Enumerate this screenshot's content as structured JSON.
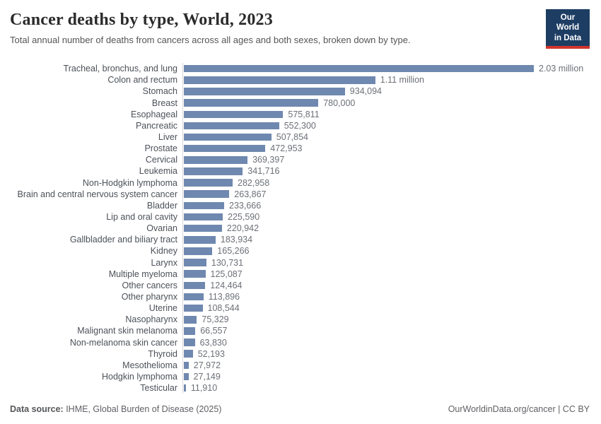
{
  "header": {
    "title": "Cancer deaths by type, World, 2023",
    "subtitle": "Total annual number of deaths from cancers across all ages and both sexes, broken down by type.",
    "logo": {
      "line1": "Our World",
      "line2": "in Data",
      "bg_color": "#1d3d63",
      "accent_color": "#d0342c"
    }
  },
  "chart_data": {
    "type": "bar",
    "orientation": "horizontal",
    "title": "Cancer deaths by type, World, 2023",
    "xlabel": "",
    "ylabel": "",
    "legend": false,
    "grid": false,
    "bar_color": "#6f88af",
    "axis_line_color": "#d9d9d9",
    "max_value": 2030000,
    "categories": [
      "Tracheal, bronchus, and lung",
      "Colon and rectum",
      "Stomach",
      "Breast",
      "Esophageal",
      "Pancreatic",
      "Liver",
      "Prostate",
      "Cervical",
      "Leukemia",
      "Non-Hodgkin lymphoma",
      "Brain and central nervous system cancer",
      "Bladder",
      "Lip and oral cavity",
      "Ovarian",
      "Gallbladder and biliary tract",
      "Kidney",
      "Larynx",
      "Multiple myeloma",
      "Other cancers",
      "Other pharynx",
      "Uterine",
      "Nasopharynx",
      "Malignant skin melanoma",
      "Non-melanoma skin cancer",
      "Thyroid",
      "Mesothelioma",
      "Hodgkin lymphoma",
      "Testicular"
    ],
    "values": [
      2030000,
      1110000,
      934094,
      780000,
      575811,
      552300,
      507854,
      472953,
      369397,
      341716,
      282958,
      263867,
      233666,
      225590,
      220942,
      183934,
      165266,
      130731,
      125087,
      124464,
      113896,
      108544,
      75329,
      66557,
      63830,
      52193,
      27972,
      27149,
      11910
    ],
    "value_labels": [
      "2.03 million",
      "1.11 million",
      "934,094",
      "780,000",
      "575,811",
      "552,300",
      "507,854",
      "472,953",
      "369,397",
      "341,716",
      "282,958",
      "263,867",
      "233,666",
      "225,590",
      "220,942",
      "183,934",
      "165,266",
      "130,731",
      "125,087",
      "124,464",
      "113,896",
      "108,544",
      "75,329",
      "66,557",
      "63,830",
      "52,193",
      "27,972",
      "27,149",
      "11,910"
    ]
  },
  "footer": {
    "datasource_label": "Data source:",
    "datasource_value": " IHME, Global Burden of Disease (2025)",
    "credit": "OurWorldinData.org/cancer | CC BY"
  }
}
